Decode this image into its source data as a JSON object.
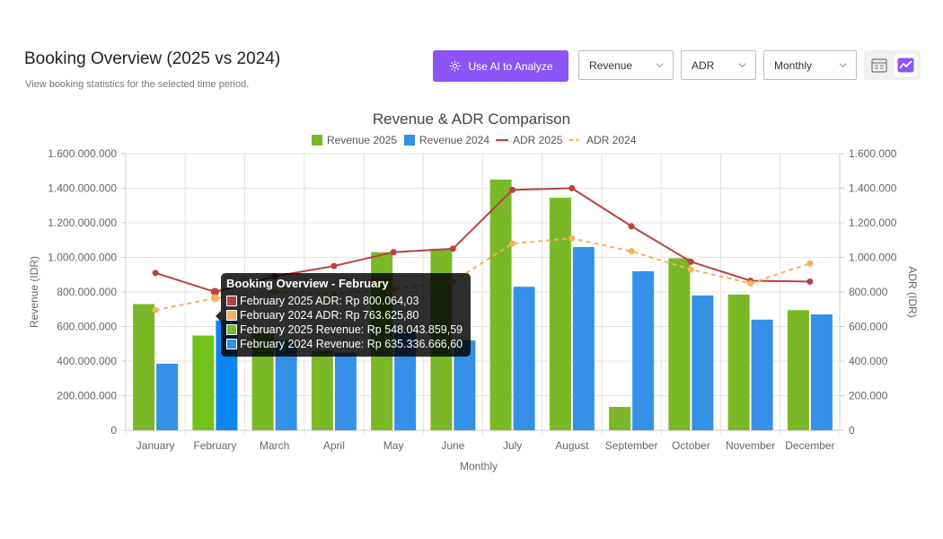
{
  "header": {
    "title": "Booking Overview (2025 vs 2024)",
    "subtitle": "View booking statistics for the selected time period."
  },
  "toolbar": {
    "ai_button_label": "Use AI to Analyze",
    "metric_select": "Revenue",
    "secondary_metric_select": "ADR",
    "period_select": "Monthly",
    "view_table_icon": "table-view-icon",
    "view_chart_icon": "line-chart-icon",
    "active_view": "chart"
  },
  "colors": {
    "accent": "#8b54f7",
    "revenue_2025": "#7ab828",
    "revenue_2024": "#3590e8",
    "adr_2025": "#b8433f",
    "adr_2024": "#f4b35c",
    "highlight_2025": "#73c11b",
    "highlight_2024": "#0a87f5"
  },
  "chart_data": {
    "type": "bar",
    "title": "Revenue & ADR Comparison",
    "xlabel": "Monthly",
    "ylabel": "Revenue (IDR)",
    "y2label": "ADR (IDR)",
    "ylim": [
      0,
      1600000000
    ],
    "y2lim": [
      0,
      1600000
    ],
    "yticks": [
      "0",
      "200.000.000",
      "400.000.000",
      "600.000.000",
      "800.000.000",
      "1.000.000.000",
      "1.200.000.000",
      "1.400.000.000",
      "1.600.000.000"
    ],
    "y2ticks": [
      "0",
      "200.000",
      "400.000",
      "600.000",
      "800.000",
      "1.000.000",
      "1.200.000",
      "1.400.000",
      "1.600.000"
    ],
    "grid": true,
    "legend_position": "top",
    "categories": [
      "January",
      "February",
      "March",
      "April",
      "May",
      "June",
      "July",
      "August",
      "September",
      "October",
      "November",
      "December"
    ],
    "series": [
      {
        "name": "Revenue 2025",
        "kind": "bar",
        "axis": "left",
        "color": "#7ab828",
        "values": [
          730000000,
          548043859.59,
          560000000,
          460000000,
          1030000000,
          1050000000,
          1450000000,
          1345000000,
          135000000,
          995000000,
          785000000,
          695000000
        ]
      },
      {
        "name": "Revenue 2024",
        "kind": "bar",
        "axis": "left",
        "color": "#3590e8",
        "values": [
          385000000,
          635336666.6,
          520000000,
          450000000,
          580000000,
          520000000,
          830000000,
          1060000000,
          920000000,
          780000000,
          640000000,
          670000000
        ]
      },
      {
        "name": "ADR 2025",
        "kind": "line",
        "axis": "right",
        "color": "#b8433f",
        "dashed": false,
        "values": [
          910000,
          800064.03,
          890000,
          950000,
          1030000,
          1050000,
          1390000,
          1400000,
          1180000,
          975000,
          865000,
          860000
        ]
      },
      {
        "name": "ADR 2024",
        "kind": "line",
        "axis": "right",
        "color": "#f4b35c",
        "dashed": true,
        "values": [
          695000,
          763625.8,
          800000,
          790000,
          815000,
          860000,
          1080000,
          1110000,
          1035000,
          930000,
          850000,
          965000
        ]
      }
    ],
    "highlight_index": 1
  },
  "tooltip": {
    "title": "Booking Overview - February",
    "rows": [
      {
        "label": "February 2025 ADR: Rp 800.064,03",
        "color": "#b8433f"
      },
      {
        "label": "February 2024 ADR: Rp 763.625,80",
        "color": "#f4b35c"
      },
      {
        "label": "February 2025 Revenue: Rp 548.043.859,59",
        "color": "#7ab828"
      },
      {
        "label": "February 2024 Revenue: Rp 635.336.666,60",
        "color": "#3590e8"
      }
    ]
  }
}
